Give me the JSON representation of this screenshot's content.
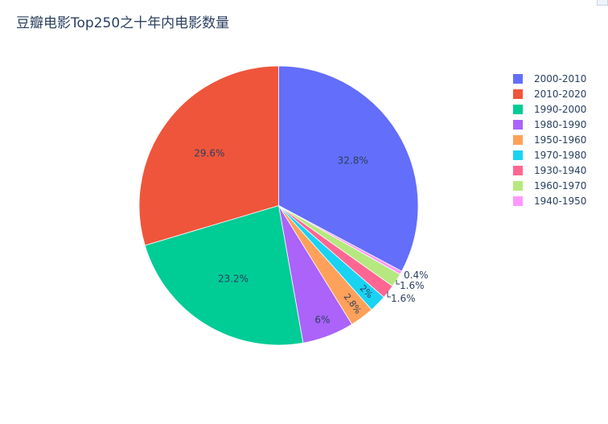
{
  "title": "豆瓣电影Top250之十年内电影数量",
  "chart_data": {
    "type": "pie",
    "title": "豆瓣电影Top250之十年内电影数量",
    "legend_position": "top-right",
    "slices": [
      {
        "label": "2000-2010",
        "value": 32.8,
        "text": "32.8%",
        "color": "#636efa"
      },
      {
        "label": "1940-1950",
        "value": 0.4,
        "text": "0.4%",
        "color": "#ff97ff"
      },
      {
        "label": "1960-1970",
        "value": 1.6,
        "text": "1.6%",
        "color": "#b6e880"
      },
      {
        "label": "1930-1940",
        "value": 1.6,
        "text": "1.6%",
        "color": "#ff6692"
      },
      {
        "label": "1970-1980",
        "value": 2.0,
        "text": "2%",
        "color": "#19d3f3"
      },
      {
        "label": "1950-1960",
        "value": 2.8,
        "text": "2.8%",
        "color": "#ffa15a"
      },
      {
        "label": "1980-1990",
        "value": 6.0,
        "text": "6%",
        "color": "#ab63fa"
      },
      {
        "label": "1990-2000",
        "value": 23.2,
        "text": "23.2%",
        "color": "#00cc96"
      },
      {
        "label": "2010-2020",
        "value": 29.6,
        "text": "29.6%",
        "color": "#ef553b"
      }
    ],
    "legend_order": [
      "2000-2010",
      "2010-2020",
      "1990-2000",
      "1980-1990",
      "1950-1960",
      "1970-1980",
      "1930-1940",
      "1960-1970",
      "1940-1950"
    ]
  }
}
